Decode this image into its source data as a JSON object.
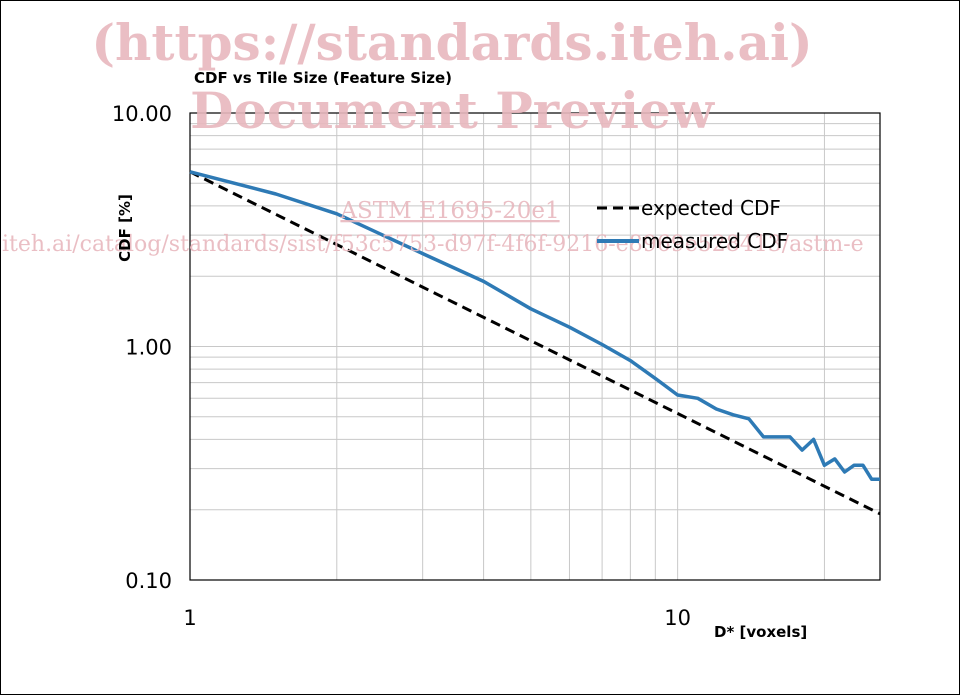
{
  "watermark": {
    "line1": "(https://standards.iteh.ai)",
    "line2": "Document Preview",
    "line3": "ASTM E1695-20e1",
    "line4": "iteh.ai/catalog/standards/sist/f53c5753-d97f-4f6f-9216-e8969e528413/astm-e"
  },
  "chart_data": {
    "type": "line",
    "title": "CDF vs Tile Size (Feature Size)",
    "xlabel": "D* [voxels]",
    "ylabel": "CDF [%]",
    "x_scale": "log",
    "y_scale": "log",
    "xlim": [
      1,
      26
    ],
    "ylim": [
      0.1,
      10
    ],
    "x_ticks": [
      {
        "value": 1,
        "label": "1"
      },
      {
        "value": 10,
        "label": "10"
      }
    ],
    "y_ticks": [
      {
        "value": 0.1,
        "label": "0.10"
      },
      {
        "value": 1,
        "label": "1.00"
      },
      {
        "value": 10,
        "label": "10.00"
      }
    ],
    "grid": true,
    "legend_position": "right",
    "series": [
      {
        "name": "expected CDF",
        "style": "dashed",
        "color": "#000000",
        "x": [
          1,
          26
        ],
        "y": [
          5.6,
          0.192
        ]
      },
      {
        "name": "measured CDF",
        "style": "solid",
        "color": "#2e7ab5",
        "x": [
          1,
          1.5,
          2,
          3,
          4,
          5,
          6,
          7,
          8,
          9,
          10,
          11,
          12,
          13,
          14,
          15,
          16,
          17,
          18,
          19,
          20,
          21,
          22,
          23,
          24,
          25,
          26
        ],
        "y": [
          5.6,
          4.5,
          3.7,
          2.5,
          1.9,
          1.45,
          1.21,
          1.02,
          0.87,
          0.73,
          0.62,
          0.6,
          0.54,
          0.51,
          0.49,
          0.41,
          0.41,
          0.41,
          0.36,
          0.4,
          0.31,
          0.33,
          0.29,
          0.31,
          0.31,
          0.27,
          0.27
        ]
      }
    ]
  }
}
